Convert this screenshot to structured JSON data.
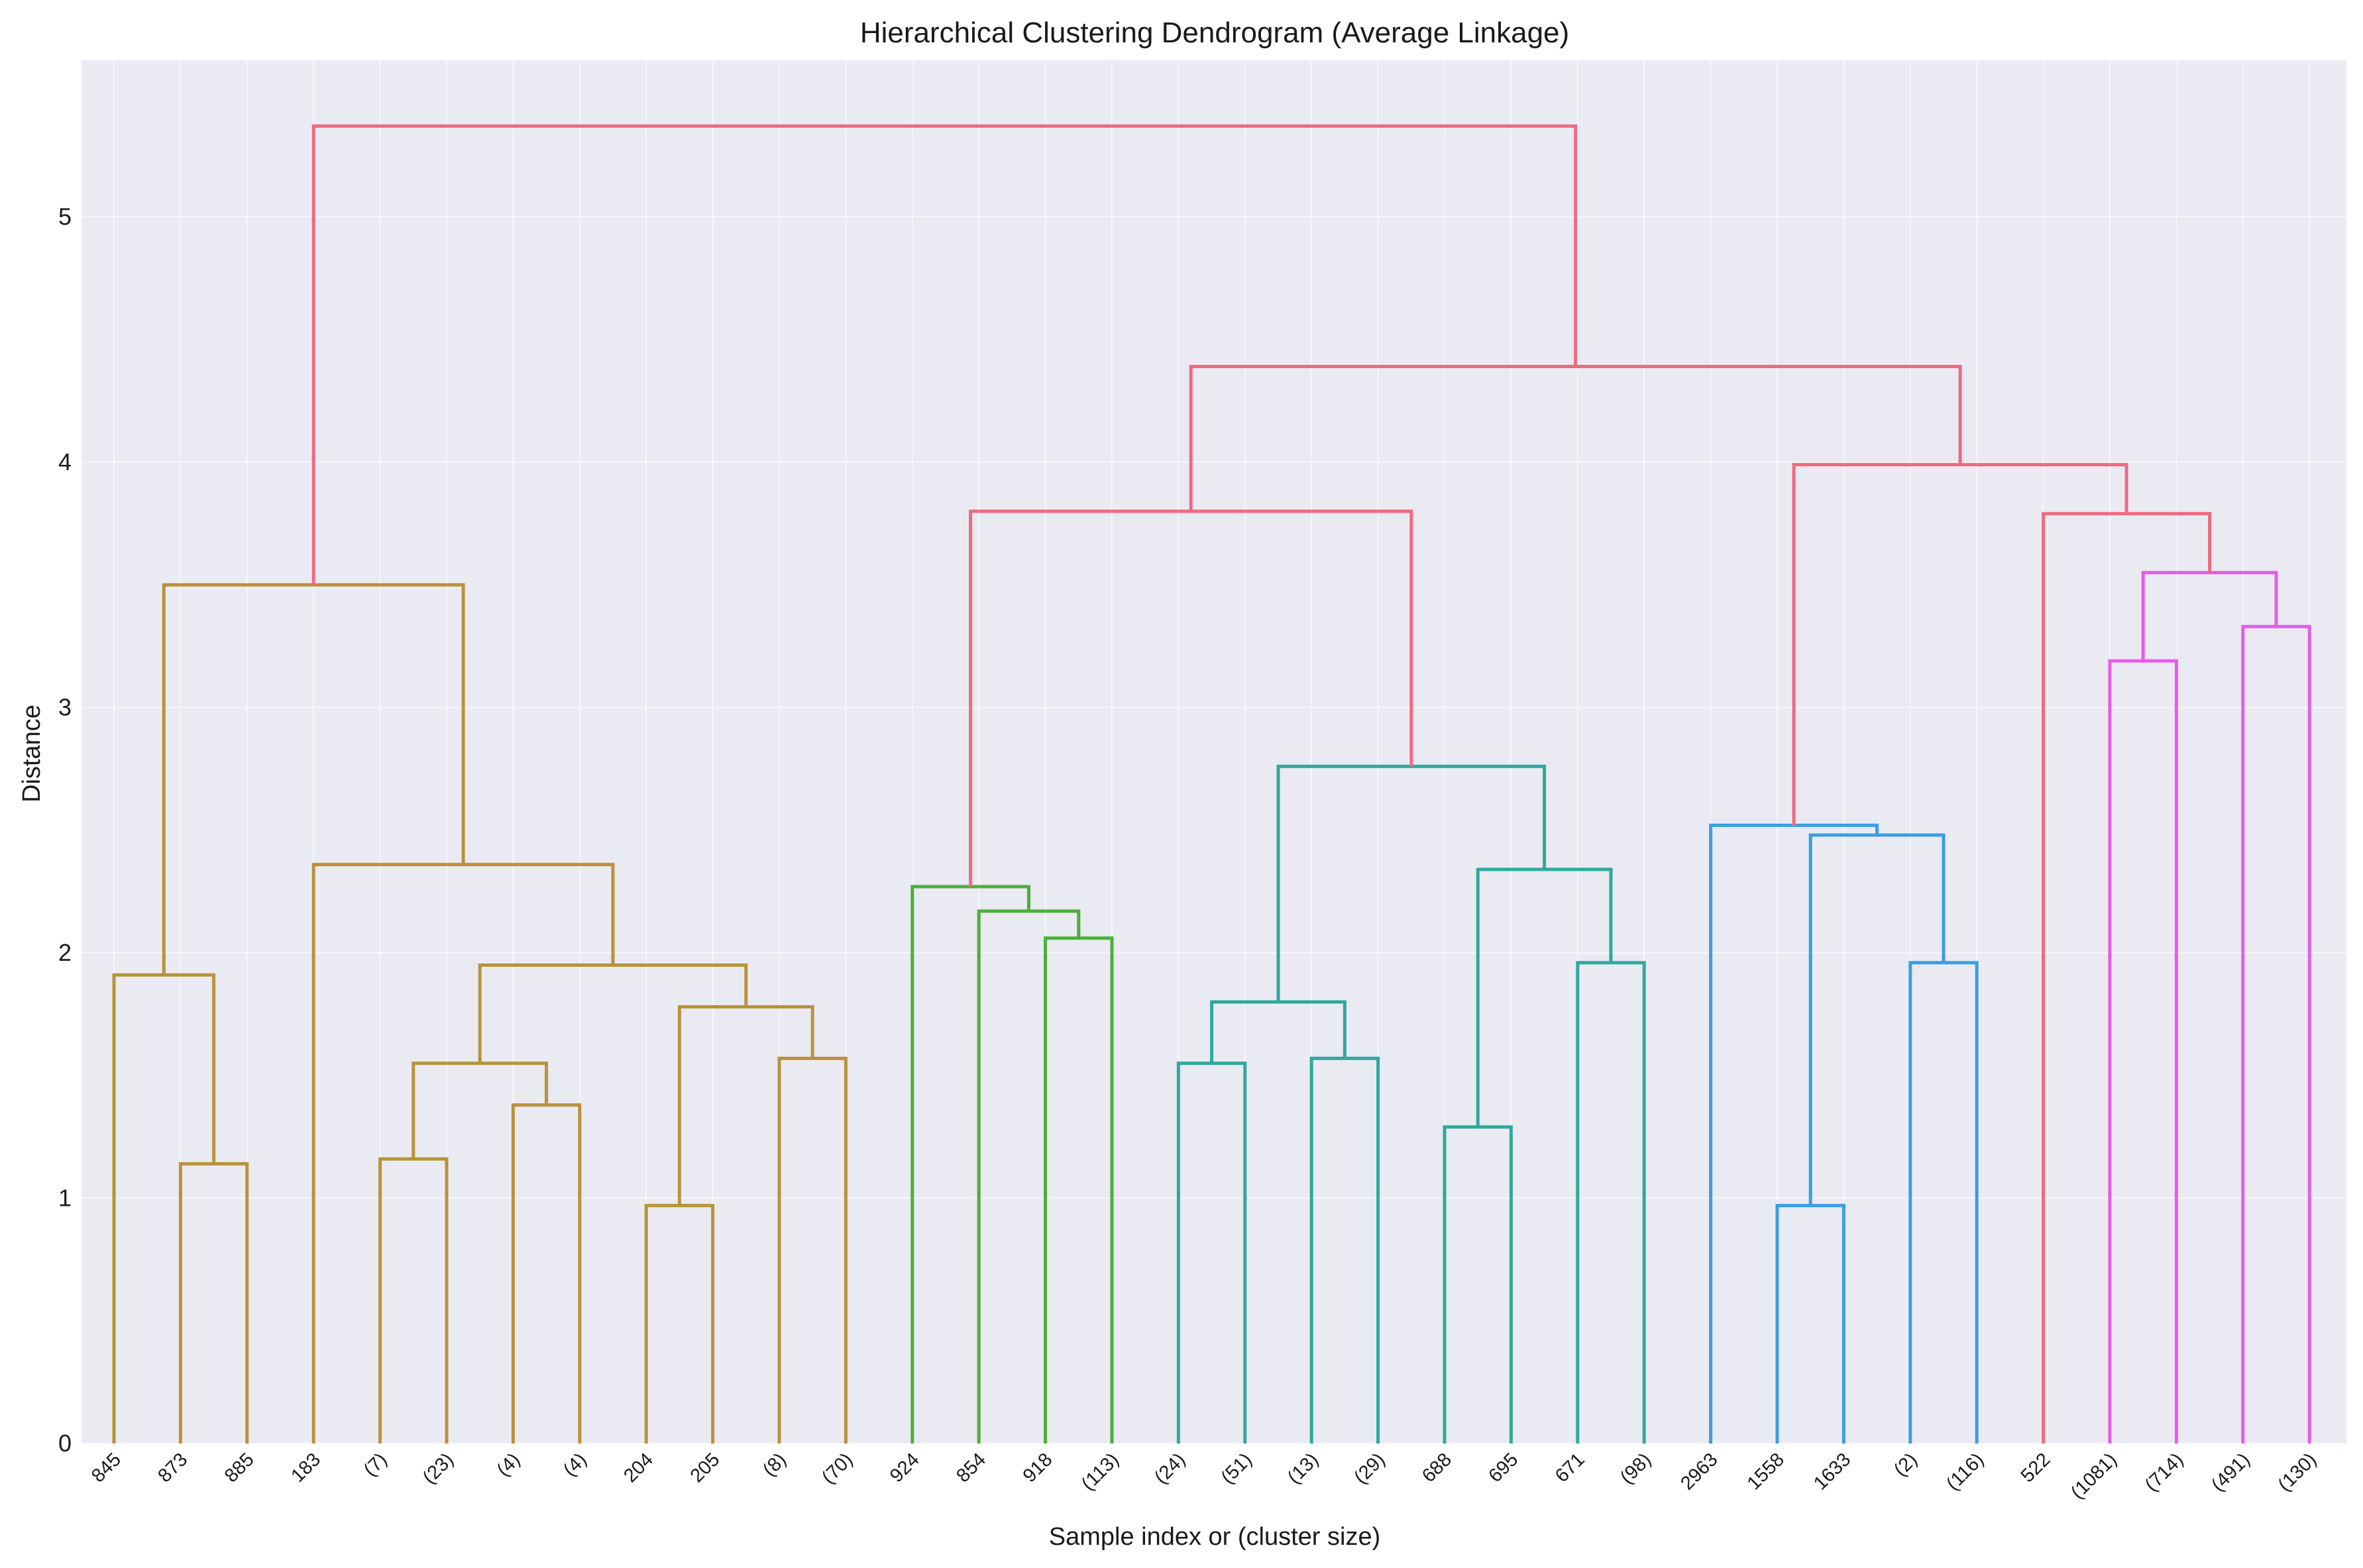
{
  "chart_data": {
    "type": "dendrogram",
    "title": "Hierarchical Clustering Dendrogram (Average Linkage)",
    "xlabel": "Sample index or (cluster size)",
    "ylabel": "Distance",
    "ylim": [
      0,
      5.65
    ],
    "yticks": [
      "0",
      "1",
      "2",
      "3",
      "4",
      "5"
    ],
    "grid": true,
    "background": "#eaeaf2",
    "leaves": [
      "845",
      "873",
      "885",
      "183",
      "(7)",
      "(23)",
      "(4)",
      "(4)",
      "204",
      "205",
      "(8)",
      "(70)",
      "924",
      "854",
      "918",
      "(113)",
      "(24)",
      "(51)",
      "(13)",
      "(29)",
      "688",
      "695",
      "671",
      "(98)",
      "2963",
      "1558",
      "1633",
      "(2)",
      "(116)",
      "522",
      "(1081)",
      "(714)",
      "(491)",
      "(130)"
    ],
    "colors": {
      "cluster_1": "#b8933a",
      "cluster_2": "#4caf3c",
      "cluster_3": "#2fa99e",
      "cluster_4": "#3d9de0",
      "cluster_5": "#e45de8",
      "above_threshold": "#ef6a80"
    },
    "merges": [
      {
        "left": "873",
        "right": "885",
        "distance": 1.14,
        "color": "cluster_1"
      },
      {
        "left": "845",
        "right": "[873,885]",
        "distance": 1.91,
        "color": "cluster_1"
      },
      {
        "left": "(7)",
        "right": "(23)",
        "distance": 1.16,
        "color": "cluster_1"
      },
      {
        "left": "(4)",
        "right": "(4)",
        "distance": 1.38,
        "color": "cluster_1"
      },
      {
        "left": "[(7),(23)]",
        "right": "[(4),(4)]",
        "distance": 1.55,
        "color": "cluster_1"
      },
      {
        "left": "204",
        "right": "205",
        "distance": 0.97,
        "color": "cluster_1"
      },
      {
        "left": "(8)",
        "right": "(70)",
        "distance": 1.57,
        "color": "cluster_1"
      },
      {
        "left": "[204,205]",
        "right": "[(8),(70)]",
        "distance": 1.78,
        "color": "cluster_1"
      },
      {
        "left": "[(7)..(4)]",
        "right": "[204..(70)]",
        "distance": 1.95,
        "color": "cluster_1"
      },
      {
        "left": "183",
        "right": "[(7)..(70)]",
        "distance": 2.36,
        "color": "cluster_1"
      },
      {
        "left": "[845..885]",
        "right": "[183..(70)]",
        "distance": 3.5,
        "color": "cluster_1"
      },
      {
        "left": "918",
        "right": "(113)",
        "distance": 2.06,
        "color": "cluster_2"
      },
      {
        "left": "854",
        "right": "[918,(113)]",
        "distance": 2.17,
        "color": "cluster_2"
      },
      {
        "left": "924",
        "right": "[854..(113)]",
        "distance": 2.27,
        "color": "cluster_2"
      },
      {
        "left": "(24)",
        "right": "(51)",
        "distance": 1.55,
        "color": "cluster_3"
      },
      {
        "left": "(13)",
        "right": "(29)",
        "distance": 1.57,
        "color": "cluster_3"
      },
      {
        "left": "[(24),(51)]",
        "right": "[(13),(29)]",
        "distance": 1.8,
        "color": "cluster_3"
      },
      {
        "left": "688",
        "right": "695",
        "distance": 1.29,
        "color": "cluster_3"
      },
      {
        "left": "671",
        "right": "(98)",
        "distance": 1.96,
        "color": "cluster_3"
      },
      {
        "left": "[688,695]",
        "right": "[671,(98)]",
        "distance": 2.34,
        "color": "cluster_3"
      },
      {
        "left": "[(24)..(29)]",
        "right": "[688..(98)]",
        "distance": 2.76,
        "color": "cluster_3"
      },
      {
        "left": "[924..(113)]",
        "right": "[(24)..(98)]",
        "distance": 3.8,
        "color": "above_threshold"
      },
      {
        "left": "1558",
        "right": "1633",
        "distance": 0.97,
        "color": "cluster_4"
      },
      {
        "left": "(2)",
        "right": "(116)",
        "distance": 1.96,
        "color": "cluster_4"
      },
      {
        "left": "[1558,1633]",
        "right": "[(2),(116)]",
        "distance": 2.48,
        "color": "cluster_4"
      },
      {
        "left": "2963",
        "right": "[1558..(116)]",
        "distance": 2.52,
        "color": "cluster_4"
      },
      {
        "left": "(1081)",
        "right": "(714)",
        "distance": 3.19,
        "color": "cluster_5"
      },
      {
        "left": "(491)",
        "right": "(130)",
        "distance": 3.33,
        "color": "cluster_5"
      },
      {
        "left": "[(1081),(714)]",
        "right": "[(491),(130)]",
        "distance": 3.55,
        "color": "cluster_5"
      },
      {
        "left": "522",
        "right": "[(1081)..(130)]",
        "distance": 3.79,
        "color": "above_threshold"
      },
      {
        "left": "[2963..(116)]",
        "right": "[522..(130)]",
        "distance": 3.99,
        "color": "above_threshold"
      },
      {
        "left": "[924..(98)]",
        "right": "[2963..(130)]",
        "distance": 4.39,
        "color": "above_threshold"
      },
      {
        "left": "[845..(70)]",
        "right": "[924..(130)]",
        "distance": 5.37,
        "color": "above_threshold"
      }
    ]
  }
}
